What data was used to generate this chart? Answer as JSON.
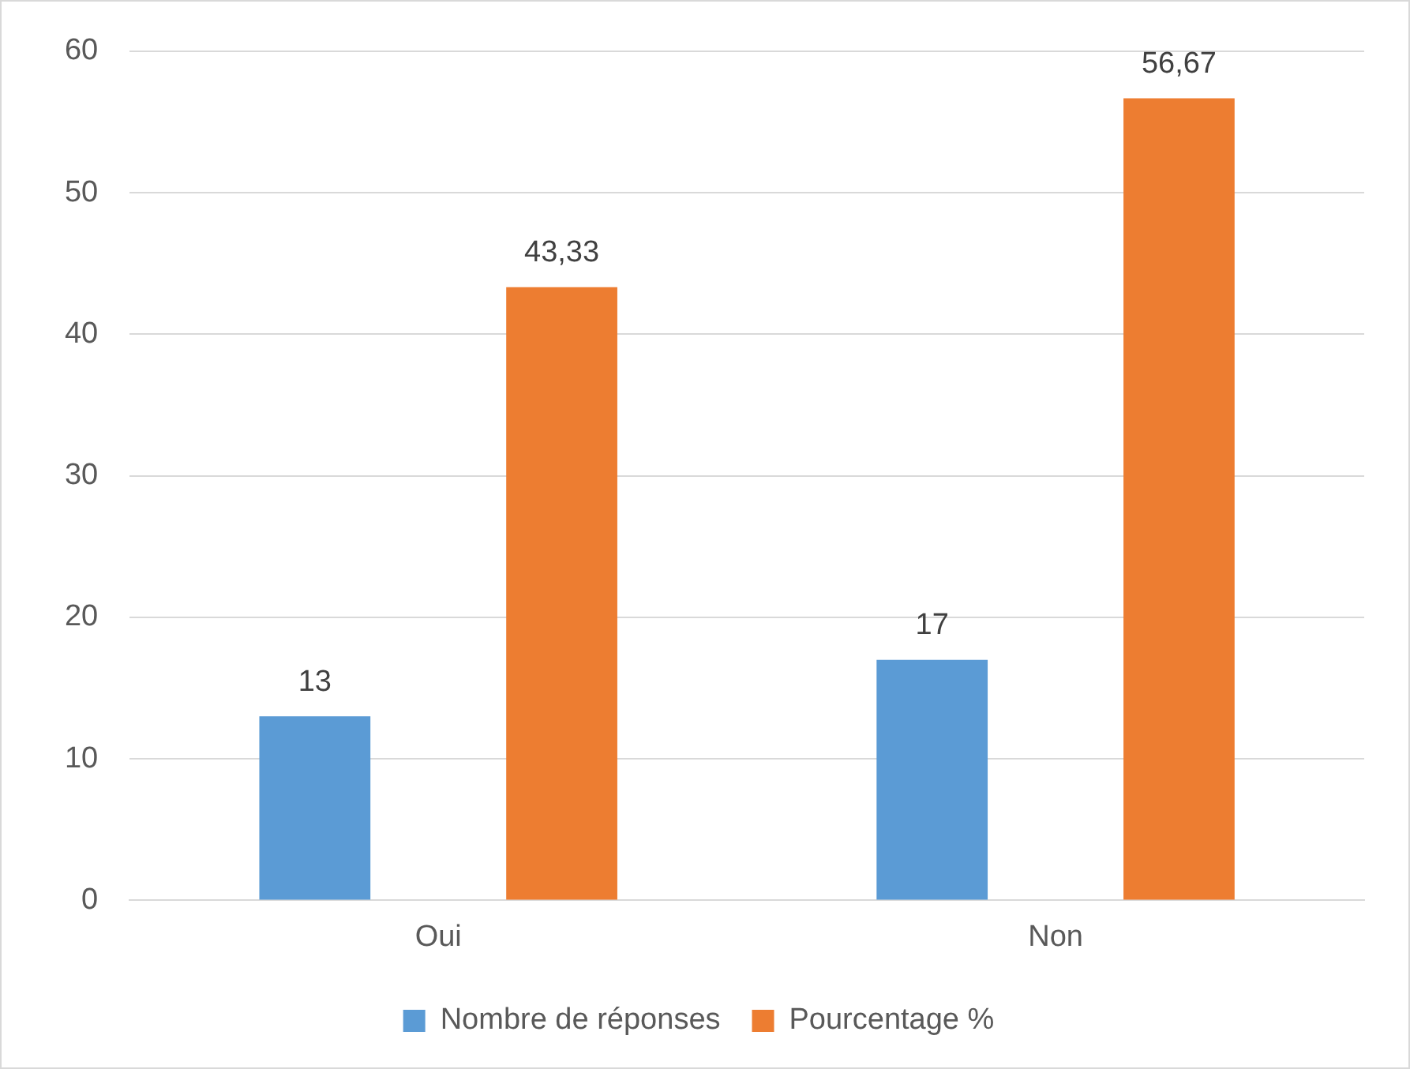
{
  "chart_data": {
    "type": "bar",
    "categories": [
      "Oui",
      "Non"
    ],
    "series": [
      {
        "name": "Nombre de réponses",
        "color": "#5b9bd5",
        "values": [
          13,
          17
        ],
        "value_labels": [
          "13",
          "17"
        ]
      },
      {
        "name": "Pourcentage %",
        "color": "#ed7d31",
        "values": [
          43.33,
          56.67
        ],
        "value_labels": [
          "43,33",
          "56,67"
        ]
      }
    ],
    "ylim": [
      0,
      60
    ],
    "yticks": [
      0,
      10,
      20,
      30,
      40,
      50,
      60
    ],
    "grid": "y",
    "legend": "bottom"
  }
}
